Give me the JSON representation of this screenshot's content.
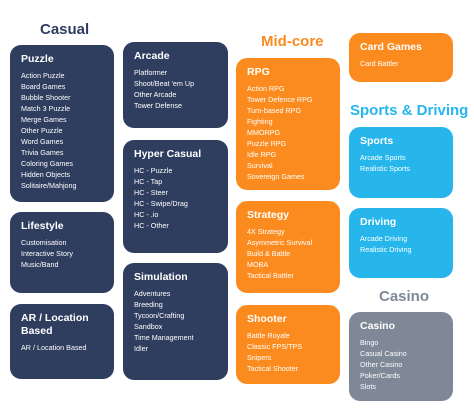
{
  "sections": {
    "casual": "Casual",
    "midcore": "Mid-core",
    "sports_driving": "Sports & Driving",
    "casino": "Casino"
  },
  "colors": {
    "casual_title": "#2f3d5f",
    "casual_card": "#2f3d5f",
    "midcore_accent": "#fb8b1e",
    "sports_accent": "#26b6ec",
    "casino_card": "#7f8896",
    "casino_title": "#7f8896"
  },
  "cards": {
    "puzzle": {
      "title": "Puzzle",
      "items": [
        "Action Puzzle",
        "Board Games",
        "Bubble Shooter",
        "Match 3 Puzzle",
        "Merge Games",
        "Other Puzzle",
        "Word Games",
        "Trivia Games",
        "Coloring Games",
        "Hidden Objects",
        "Solitaire/Mahjong"
      ]
    },
    "lifestyle": {
      "title": "Lifestyle",
      "items": [
        "Customisation",
        "Interactive Story",
        "Music/Band"
      ]
    },
    "ar": {
      "title_line1": "AR / Location",
      "title_line2": "Based",
      "items": [
        "AR / Location Based"
      ]
    },
    "arcade": {
      "title": "Arcade",
      "items": [
        "Platformer",
        "Shoot/Beat 'em Up",
        "Other Arcade",
        "Tower Defense"
      ]
    },
    "hyper": {
      "title": "Hyper Casual",
      "items": [
        "HC - Puzzle",
        "HC - Tap",
        "HC - Steer",
        "HC - Swipe/Drag",
        "HC - .io",
        "HC - Other"
      ]
    },
    "simulation": {
      "title": "Simulation",
      "items": [
        "Adventures",
        "Breeding",
        "Tycoon/Crafting",
        "Sandbox",
        "Time Management",
        "Idler"
      ]
    },
    "rpg": {
      "title": "RPG",
      "items": [
        "Action RPG",
        "Tower Defence RPG",
        "Turn-based RPG",
        "Fighting",
        "MMORPG",
        "Puzzle RPG",
        "Idle RPG",
        "Survival",
        "Sovereign Games"
      ]
    },
    "strategy": {
      "title": "Strategy",
      "items": [
        "4X Strategy",
        "Asymmetric Survival",
        "Build & Battle",
        "MOBA",
        "Tactical Battler"
      ]
    },
    "shooter": {
      "title": "Shooter",
      "items": [
        "Battle Royale",
        "Classic FPS/TPS",
        "Snipers",
        "Tactical Shooter"
      ]
    },
    "cardgames": {
      "title": "Card Games",
      "items": [
        "Card Battler"
      ]
    },
    "sports": {
      "title": "Sports",
      "items": [
        "Arcade Sports",
        "Realistic Sports"
      ]
    },
    "driving": {
      "title": "Driving",
      "items": [
        "Arcade Driving",
        "Realistic Driving"
      ]
    },
    "casino": {
      "title": "Casino",
      "items": [
        "Bingo",
        "Casual Casino",
        "Other Casino",
        "Poker/Cards",
        "Slots"
      ]
    }
  }
}
